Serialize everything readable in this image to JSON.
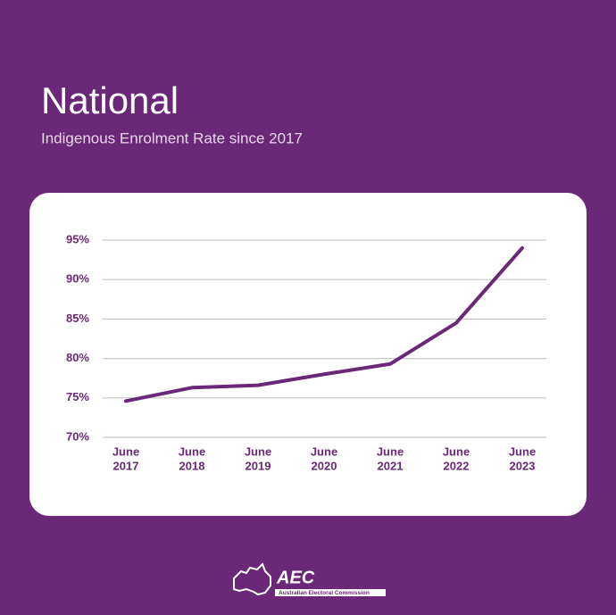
{
  "chart_data": {
    "type": "line",
    "title": "National",
    "subtitle": "Indigenous Enrolment Rate since 2017",
    "categories": [
      [
        "June",
        "2017"
      ],
      [
        "June",
        "2018"
      ],
      [
        "June",
        "2019"
      ],
      [
        "June",
        "2020"
      ],
      [
        "June",
        "2021"
      ],
      [
        "June",
        "2022"
      ],
      [
        "June",
        "2023"
      ]
    ],
    "values": [
      74.6,
      76.3,
      76.6,
      78.0,
      79.3,
      84.5,
      94.0
    ],
    "color": "#6b2778",
    "ylim": [
      70,
      95
    ],
    "yticks": [
      {
        "value": 70,
        "label": "70%"
      },
      {
        "value": 75,
        "label": "75%"
      },
      {
        "value": 80,
        "label": "80%"
      },
      {
        "value": 85,
        "label": "85%"
      },
      {
        "value": 90,
        "label": "90%"
      },
      {
        "value": 95,
        "label": "95%"
      }
    ],
    "grid": true
  },
  "logo": {
    "text": "AEC",
    "subtext": "Australian Electoral Commission"
  }
}
